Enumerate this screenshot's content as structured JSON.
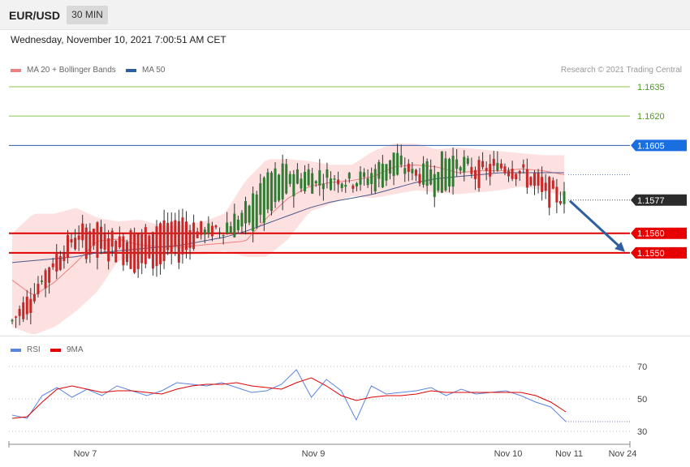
{
  "header": {
    "symbol": "EUR/USD",
    "timeframe": "30 MIN",
    "datetime": "Wednesday, November 10, 2021 7:00:51 AM CET"
  },
  "legend": {
    "ma20": "MA 20 + Bollinger Bands",
    "ma50": "MA 50",
    "credit": "Research © 2021 Trading Central",
    "rsi": "RSI",
    "rsi_ma": "9MA"
  },
  "colors": {
    "bb_fill": "#fde0e0",
    "ma20": "#f08080",
    "ma50": "#4a5a8c",
    "bull": "#2e7d32",
    "bear": "#c62828",
    "target_green": "#8bc34a",
    "pivot_blue": "#2c5ea8",
    "support_red": "#e00000",
    "current_dark": "#333333",
    "arrow": "#2f5f9e",
    "rsi": "#5b85e0",
    "rsi_ma": "#e00000"
  },
  "chart_data": [
    {
      "type": "candlestick",
      "title": "EUR/USD 30 MIN",
      "ylim": [
        1.1508,
        1.164
      ],
      "x_ticks": [
        "Nov 7",
        "Nov 9",
        "Nov 10",
        "Nov 11",
        "Nov 24"
      ],
      "grid": false,
      "legend_position": "top-left",
      "levels": [
        {
          "label": "1.1635",
          "value": 1.1635,
          "kind": "target",
          "color": "#8bc34a"
        },
        {
          "label": "1.1620",
          "value": 1.162,
          "kind": "target",
          "color": "#8bc34a"
        },
        {
          "label": "1.1605",
          "value": 1.1605,
          "kind": "pivot",
          "color": "#2c5ea8"
        },
        {
          "label": "1.1577",
          "value": 1.1577,
          "kind": "current",
          "color": "#333333"
        },
        {
          "label": "1.1560",
          "value": 1.156,
          "kind": "support",
          "color": "#e00000"
        },
        {
          "label": "1.1550",
          "value": 1.155,
          "kind": "support",
          "color": "#e00000"
        }
      ],
      "projection": {
        "from": 1.1577,
        "to": 1.155,
        "direction": "down"
      },
      "anchors": [
        [
          1.1515,
          1.1515
        ],
        [
          1.1531,
          1.1525
        ],
        [
          1.1548,
          1.154
        ],
        [
          1.156,
          1.1555
        ],
        [
          1.1565,
          1.1548
        ],
        [
          1.1558,
          1.155
        ],
        [
          1.156,
          1.1542
        ],
        [
          1.1565,
          1.1545
        ],
        [
          1.1567,
          1.155
        ],
        [
          1.1562,
          1.156
        ],
        [
          1.156,
          1.1564
        ],
        [
          1.1562,
          1.1572
        ],
        [
          1.1568,
          1.159
        ],
        [
          1.1582,
          1.1592
        ],
        [
          1.1584,
          1.1591
        ],
        [
          1.1586,
          1.159
        ],
        [
          1.1588,
          1.1586
        ],
        [
          1.1584,
          1.1592
        ],
        [
          1.159,
          1.1601
        ],
        [
          1.1594,
          1.1588
        ],
        [
          1.158,
          1.1596
        ],
        [
          1.159,
          1.16
        ],
        [
          1.1594,
          1.1588
        ],
        [
          1.1596,
          1.1594
        ],
        [
          1.1593,
          1.159
        ],
        [
          1.1588,
          1.1578
        ],
        [
          1.1578,
          1.1578
        ]
      ],
      "ma20": [
        1.1536,
        1.1528,
        1.1535,
        1.1545,
        1.1556,
        1.1557,
        1.1554,
        1.1553,
        1.1553,
        1.1554,
        1.1555,
        1.1556,
        1.1568,
        1.1578,
        1.1584,
        1.1586,
        1.1587,
        1.1589,
        1.1594,
        1.1595,
        1.1594,
        1.1591,
        1.1592,
        1.1592,
        1.1593,
        1.1592,
        1.159
      ],
      "bb_upper": [
        1.156,
        1.157,
        1.157,
        1.1573,
        1.1568,
        1.1566,
        1.1567,
        1.1564,
        1.1564,
        1.1566,
        1.157,
        1.1587,
        1.1598,
        1.1598,
        1.1597,
        1.1595,
        1.1595,
        1.1602,
        1.1606,
        1.1606,
        1.1603,
        1.1604,
        1.1603,
        1.1602,
        1.1601,
        1.16,
        1.16
      ],
      "bb_lower": [
        1.1512,
        1.1508,
        1.1512,
        1.152,
        1.153,
        1.1546,
        1.1549,
        1.1549,
        1.1549,
        1.1549,
        1.1551,
        1.1548,
        1.1548,
        1.1557,
        1.1571,
        1.1575,
        1.1579,
        1.1578,
        1.158,
        1.1582,
        1.1581,
        1.158,
        1.1581,
        1.1582,
        1.1584,
        1.1582,
        1.1579
      ],
      "ma50": [
        1.1545,
        1.1546,
        1.1547,
        1.1548,
        1.155,
        1.1551,
        1.1552,
        1.1553,
        1.1554,
        1.1556,
        1.1558,
        1.1561,
        1.1565,
        1.1569,
        1.1573,
        1.1576,
        1.1578,
        1.158,
        1.1583,
        1.1586,
        1.1588,
        1.1589,
        1.159,
        1.1591,
        1.1591,
        1.1591,
        1.1591
      ]
    },
    {
      "type": "line",
      "title": "RSI",
      "ylim": [
        26,
        76
      ],
      "y_ticks": [
        30,
        50,
        70
      ],
      "series": [
        {
          "name": "RSI",
          "values": [
            40,
            38,
            52,
            57,
            51,
            56,
            52,
            58,
            55,
            52,
            55,
            60,
            59,
            58,
            60,
            57,
            54,
            55,
            59,
            68,
            51,
            62,
            55,
            37,
            58,
            53,
            54,
            55,
            57,
            52,
            56,
            53,
            54,
            55,
            52,
            48,
            45,
            36
          ]
        },
        {
          "name": "9MA",
          "values": [
            38,
            39,
            48,
            56,
            58,
            56,
            54,
            55,
            55,
            54,
            53,
            56,
            58,
            59,
            59,
            60,
            58,
            57,
            56,
            60,
            63,
            58,
            52,
            49,
            51,
            52,
            52,
            53,
            55,
            54,
            54,
            54,
            54,
            54,
            54,
            52,
            48,
            42
          ]
        }
      ]
    }
  ]
}
